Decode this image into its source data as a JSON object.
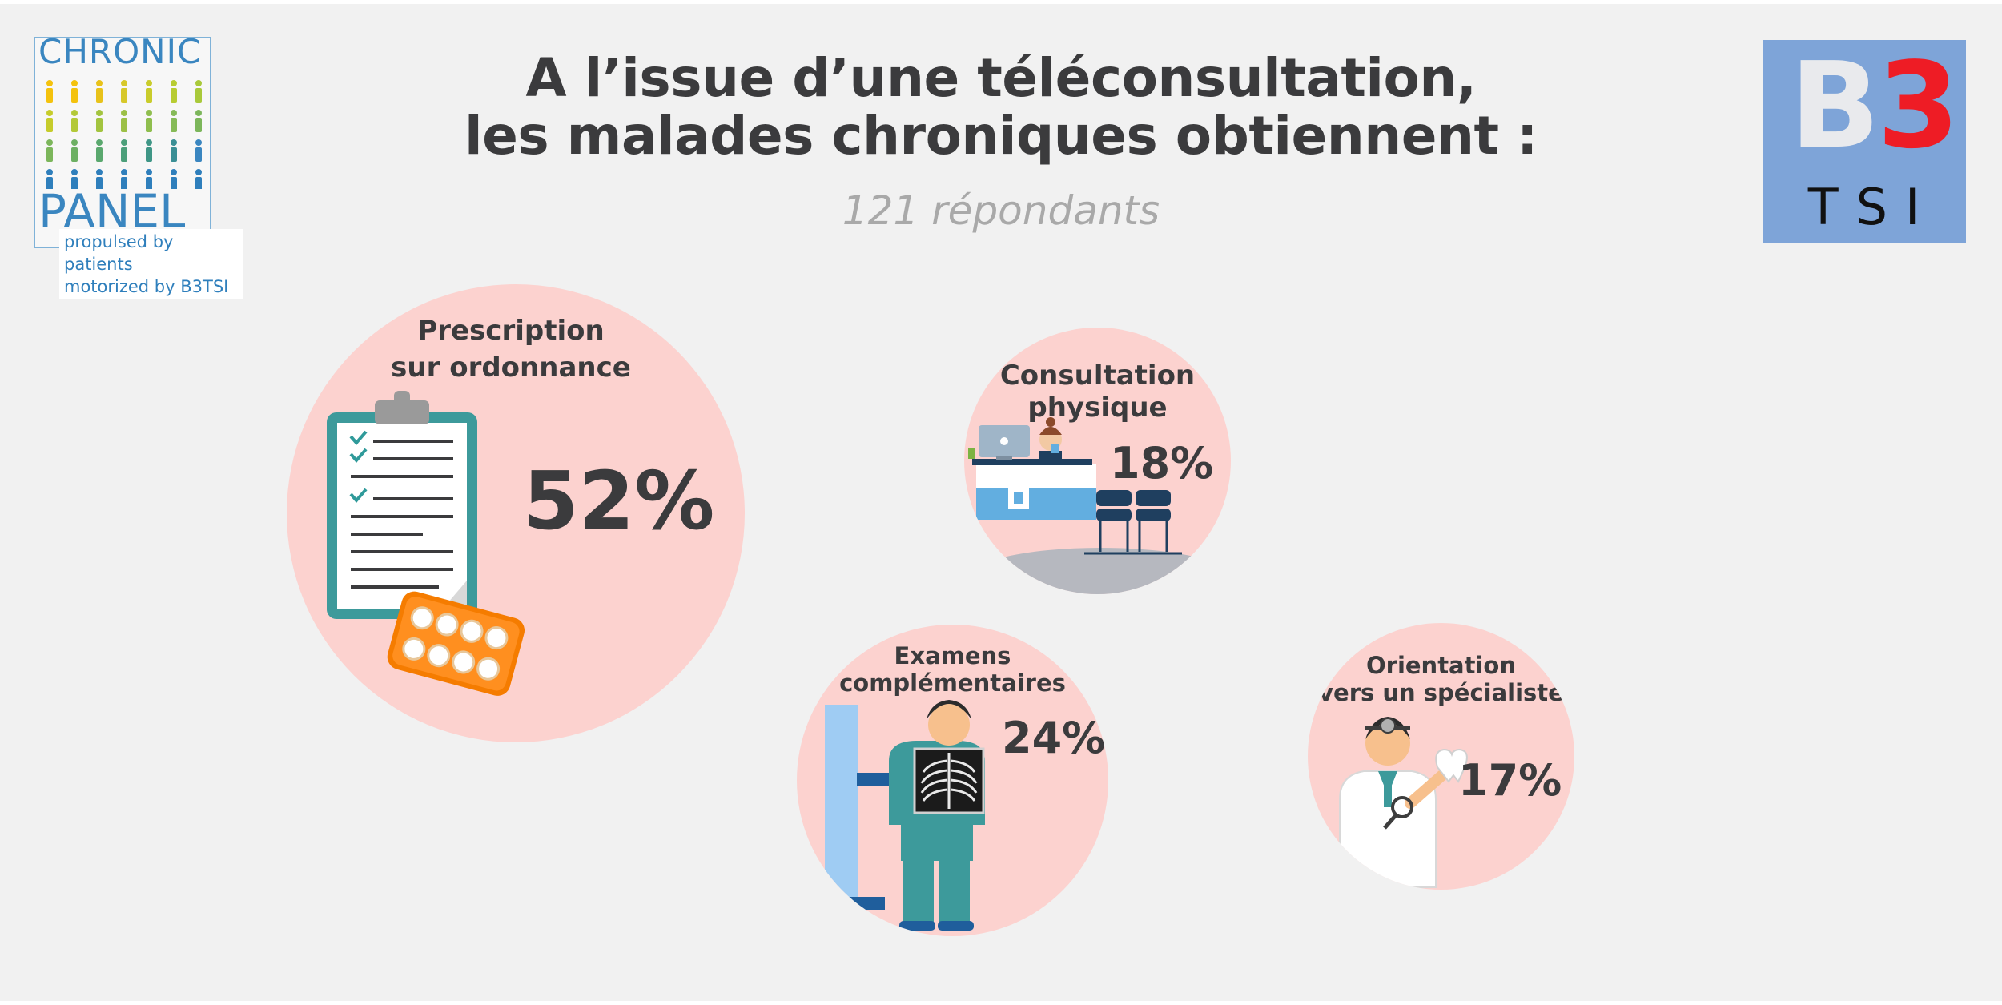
{
  "header": {
    "title_line1": "A l’issue d’une téléconsultation,",
    "title_line2": "les malades chroniques obtiennent :",
    "subtitle": "121 répondants"
  },
  "logos": {
    "chronic_top": "CHRONIC",
    "chronic_bottom": "PANEL",
    "chronic_tag1": "propulsed by patients",
    "chronic_tag2": "motorized by B3TSI",
    "b3_b": "B",
    "b3_3": "3",
    "b3_tsi": "TSI"
  },
  "colors": {
    "bubble": "#fcd2cf",
    "text": "#3b3b3d",
    "subtitle": "#a9a9a9",
    "b3_bg": "#7ea4d8",
    "b3_red": "#ee1c25"
  },
  "chart_data": {
    "type": "bubble",
    "title": "A l’issue d’une téléconsultation, les malades chroniques obtiennent :",
    "subtitle": "121 répondants",
    "unit": "%",
    "items": [
      {
        "label_line1": "Prescription",
        "label_line2": "sur ordonnance",
        "value": 52,
        "value_label": "52%",
        "icon": "prescription-clipboard-pills-icon"
      },
      {
        "label_line1": "Consultation",
        "label_line2": "physique",
        "value": 18,
        "value_label": "18%",
        "icon": "clinic-reception-icon"
      },
      {
        "label_line1": "Examens",
        "label_line2": "complémentaires",
        "value": 24,
        "value_label": "24%",
        "icon": "xray-patient-icon"
      },
      {
        "label_line1": "Orientation",
        "label_line2": "vers un spécialiste",
        "value": 17,
        "value_label": "17%",
        "icon": "specialist-doctor-icon"
      }
    ]
  }
}
